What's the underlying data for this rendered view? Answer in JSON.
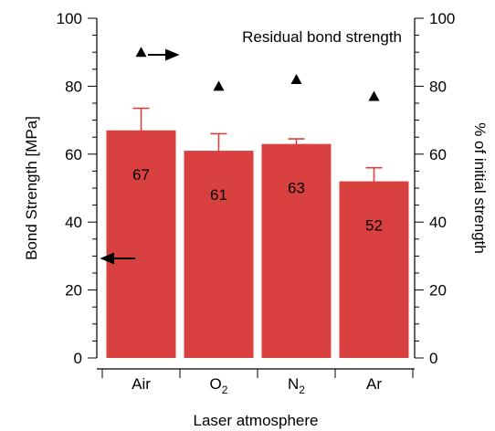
{
  "chart_data": {
    "type": "bar",
    "title": "Residual bond strength",
    "xlabel": "Laser atmosphere",
    "ylabel_left": "Bond Strength [MPa]",
    "ylabel_right": "% of initial strength",
    "categories": [
      {
        "base": "Air",
        "sub": ""
      },
      {
        "base": "O",
        "sub": "2"
      },
      {
        "base": "N",
        "sub": "2"
      },
      {
        "base": "Ar",
        "sub": ""
      }
    ],
    "bond_strength": {
      "axis": "left",
      "values": [
        67,
        61,
        63,
        52
      ],
      "value_labels": [
        "67",
        "61",
        "63",
        "52"
      ],
      "error_high": [
        73.5,
        66,
        64.5,
        56
      ],
      "error_low": [
        61,
        56,
        62,
        47.5
      ],
      "color": "#d94040"
    },
    "residual_percent": {
      "axis": "right",
      "marker": "triangle",
      "values": [
        90,
        80,
        82,
        77
      ],
      "color": "#000000"
    },
    "ylim_left": [
      0,
      100
    ],
    "ylim_right": [
      0,
      100
    ],
    "yticks_left": [
      "0",
      "20",
      "40",
      "60",
      "80",
      "100"
    ],
    "yticks_right": [
      "0",
      "20",
      "40",
      "60",
      "80",
      "100"
    ],
    "legend_placement": "top-right",
    "grid": false
  }
}
